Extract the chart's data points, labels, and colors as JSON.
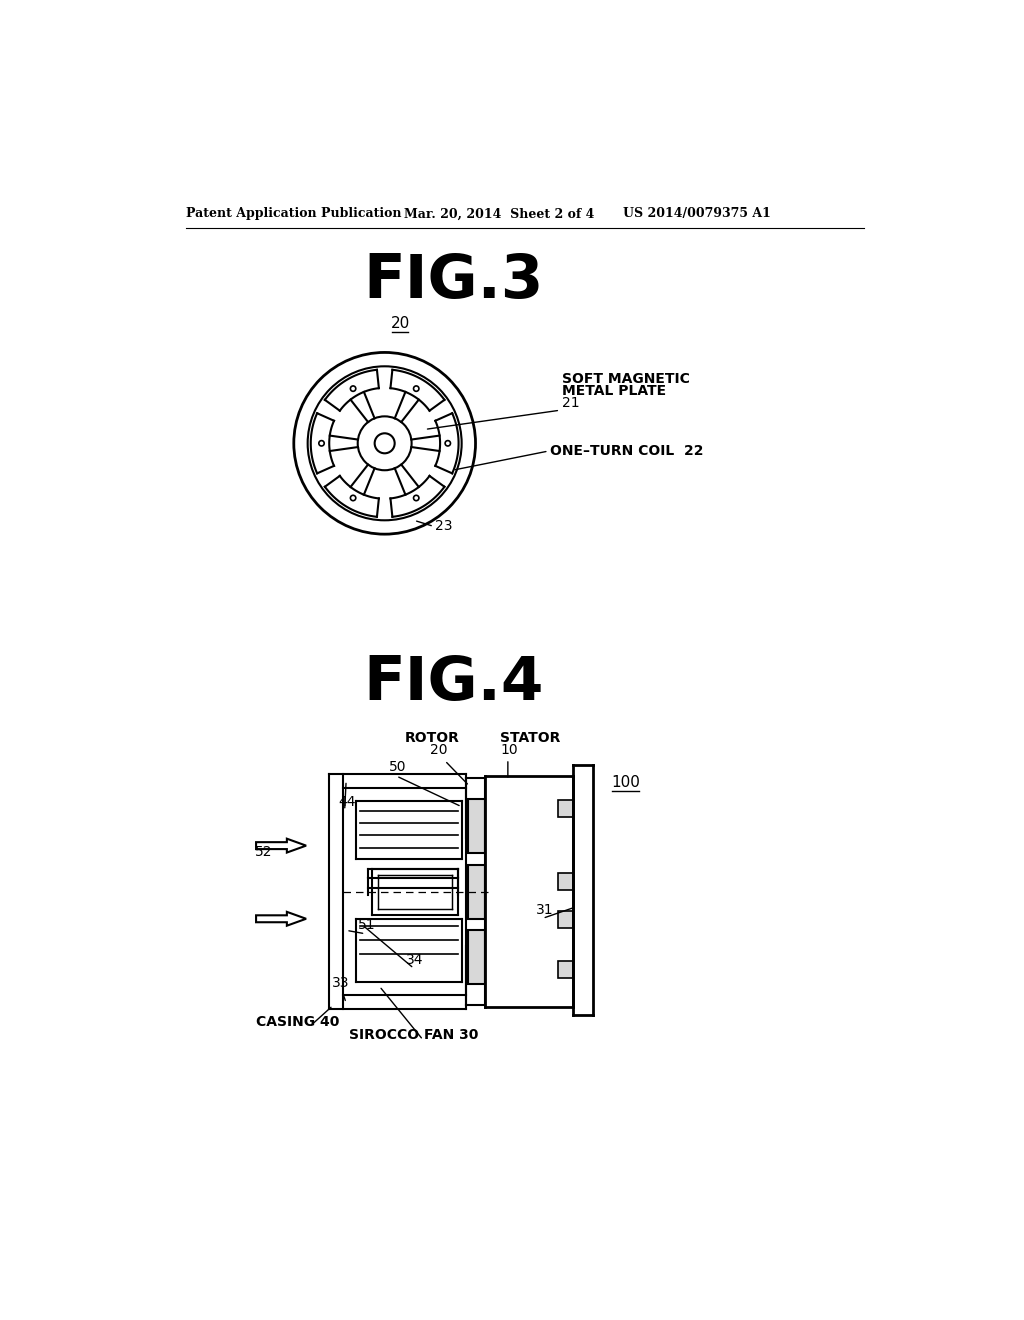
{
  "bg_color": "#ffffff",
  "header_left": "Patent Application Publication",
  "header_mid": "Mar. 20, 2014  Sheet 2 of 4",
  "header_right": "US 2014/0079375 A1",
  "fig3_title": "FIG.3",
  "fig4_title": "FIG.4",
  "line_color": "#000000",
  "lw": 1.5
}
